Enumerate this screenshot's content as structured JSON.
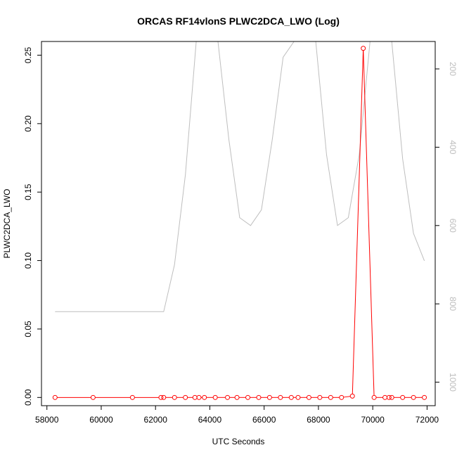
{
  "chart_data": {
    "type": "line",
    "title": "ORCAS RF14vlonS PLWC2DCA_LWO (Log)",
    "xlabel": "UTC Seconds",
    "ylabel": "PLWC2DCA_LWO",
    "xlim": [
      57800,
      72300
    ],
    "ylim": [
      -0.006,
      0.26
    ],
    "y2lim": [
      1060,
      130
    ],
    "x_ticks": [
      58000,
      60000,
      62000,
      64000,
      66000,
      68000,
      70000,
      72000
    ],
    "y_ticks": [
      0.0,
      0.05,
      0.1,
      0.15,
      0.2,
      0.25
    ],
    "y_tick_labels": [
      "0.00",
      "0.05",
      "0.10",
      "0.15",
      "0.20",
      "0.25"
    ],
    "y2_ticks": [
      200,
      400,
      600,
      800,
      1000
    ],
    "grid": false,
    "colors": {
      "primary": "#ff0000",
      "secondary": "#bebebe",
      "axis": "#000000",
      "secondary_axis": "#bdbdbd"
    },
    "series": [
      {
        "axis": "left",
        "style": "points+line",
        "x": [
          58300,
          59700,
          61150,
          62200,
          62300,
          62700,
          63100,
          63450,
          63600,
          63800,
          64200,
          64650,
          65000,
          65400,
          65800,
          66200,
          66600,
          67000,
          67250,
          67650,
          68050,
          68450,
          68850,
          69250,
          69650,
          70050,
          70450,
          70600,
          70700,
          71100,
          71500,
          71900
        ],
        "y": [
          0,
          0,
          0,
          0,
          0,
          0,
          0,
          0,
          0,
          0,
          0,
          0,
          0,
          0,
          0,
          0,
          0,
          0,
          0,
          0,
          0,
          0,
          0,
          0.001,
          0.255,
          0,
          0,
          0,
          0,
          0,
          0,
          0
        ]
      },
      {
        "axis": "right",
        "style": "line",
        "x": [
          58300,
          62300,
          62700,
          63100,
          63500,
          63900,
          64300,
          64700,
          65100,
          65500,
          65900,
          66300,
          66700,
          67100,
          67500,
          67900,
          68300,
          68700,
          69100,
          69500,
          69900,
          70300,
          70700,
          71100,
          71500,
          71900
        ],
        "y": [
          820,
          820,
          700,
          470,
          130,
          130,
          130,
          380,
          580,
          600,
          560,
          380,
          170,
          130,
          130,
          130,
          420,
          600,
          580,
          420,
          130,
          130,
          130,
          430,
          620,
          690
        ]
      }
    ]
  }
}
